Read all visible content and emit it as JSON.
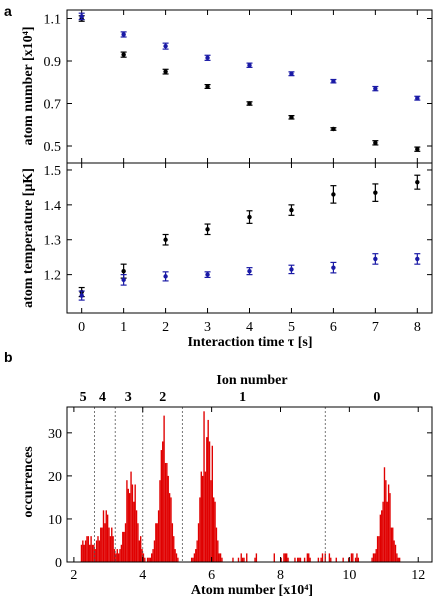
{
  "chart_data": [
    {
      "panel": "a",
      "type": "scatter",
      "ylabel": "atom number [x10⁴]",
      "ylim": [
        0.42,
        1.14
      ],
      "yticks": [
        "0.5",
        "0.7",
        "0.9",
        "1.1"
      ],
      "xlim": [
        -0.35,
        8.35
      ],
      "series": [
        {
          "color": "#000000",
          "x": [
            0,
            1,
            2,
            3,
            4,
            5,
            6,
            7,
            8
          ],
          "y": [
            1.1,
            0.93,
            0.85,
            0.78,
            0.7,
            0.635,
            0.58,
            0.515,
            0.485
          ],
          "err": [
            0.013,
            0.012,
            0.011,
            0.009,
            0.008,
            0.008,
            0.006,
            0.01,
            0.01
          ]
        },
        {
          "color": "#1a1aa6",
          "x": [
            0,
            1,
            2,
            3,
            4,
            5,
            6,
            7,
            8
          ],
          "y": [
            1.11,
            1.025,
            0.97,
            0.915,
            0.88,
            0.84,
            0.805,
            0.77,
            0.725
          ],
          "err": [
            0.015,
            0.012,
            0.014,
            0.012,
            0.01,
            0.009,
            0.008,
            0.01,
            0.009
          ]
        }
      ]
    },
    {
      "panel": "a",
      "type": "scatter",
      "ylabel": "atom temperature [μK]",
      "xlabel": "Interaction time τ [s]",
      "ylim": [
        1.09,
        1.52
      ],
      "yticks": [
        "1.2",
        "1.3",
        "1.4",
        "1.5"
      ],
      "xticks": [
        "0",
        "1",
        "2",
        "3",
        "4",
        "5",
        "6",
        "7",
        "8"
      ],
      "xlim": [
        -0.35,
        8.35
      ],
      "series": [
        {
          "color": "#000000",
          "x": [
            0,
            1,
            2,
            3,
            4,
            5,
            6,
            7,
            8
          ],
          "y": [
            1.15,
            1.21,
            1.3,
            1.33,
            1.365,
            1.385,
            1.43,
            1.435,
            1.465
          ],
          "err": [
            0.013,
            0.02,
            0.015,
            0.015,
            0.018,
            0.015,
            0.025,
            0.025,
            0.02
          ]
        },
        {
          "color": "#1a1aa6",
          "x": [
            0,
            1,
            2,
            3,
            4,
            5,
            6,
            7,
            8
          ],
          "y": [
            1.14,
            1.185,
            1.195,
            1.2,
            1.21,
            1.215,
            1.22,
            1.245,
            1.245
          ],
          "err": [
            0.013,
            0.015,
            0.013,
            0.008,
            0.01,
            0.012,
            0.015,
            0.015,
            0.015
          ]
        }
      ]
    },
    {
      "panel": "b",
      "type": "bar",
      "title": "Ion number",
      "xlabel": "Atom number [x10⁴]",
      "ylabel": "occurrences",
      "xlim": [
        1.8,
        12.4
      ],
      "ylim": [
        0,
        36
      ],
      "xticks": [
        "2",
        "4",
        "6",
        "8",
        "10",
        "12"
      ],
      "yticks": [
        "0",
        "10",
        "20",
        "30"
      ],
      "color": "#e00000",
      "bin_width": 0.04,
      "region_boundaries": [
        2.6,
        3.2,
        4.0,
        5.15,
        9.3
      ],
      "region_labels": [
        {
          "label": "5",
          "x": 2.27
        },
        {
          "label": "4",
          "x": 2.83
        },
        {
          "label": "3",
          "x": 3.58
        },
        {
          "label": "2",
          "x": 4.58
        },
        {
          "label": "1",
          "x": 6.9
        },
        {
          "label": "0",
          "x": 10.8
        }
      ],
      "peaks": [
        {
          "center": 2.35,
          "height": 6
        },
        {
          "center": 2.9,
          "height": 12
        },
        {
          "center": 3.65,
          "height": 20
        },
        {
          "center": 4.6,
          "height": 27
        },
        {
          "center": 5.85,
          "height": 32
        },
        {
          "center": 11.05,
          "height": 18
        }
      ]
    }
  ],
  "panel_labels": {
    "a": "a",
    "b": "b"
  }
}
